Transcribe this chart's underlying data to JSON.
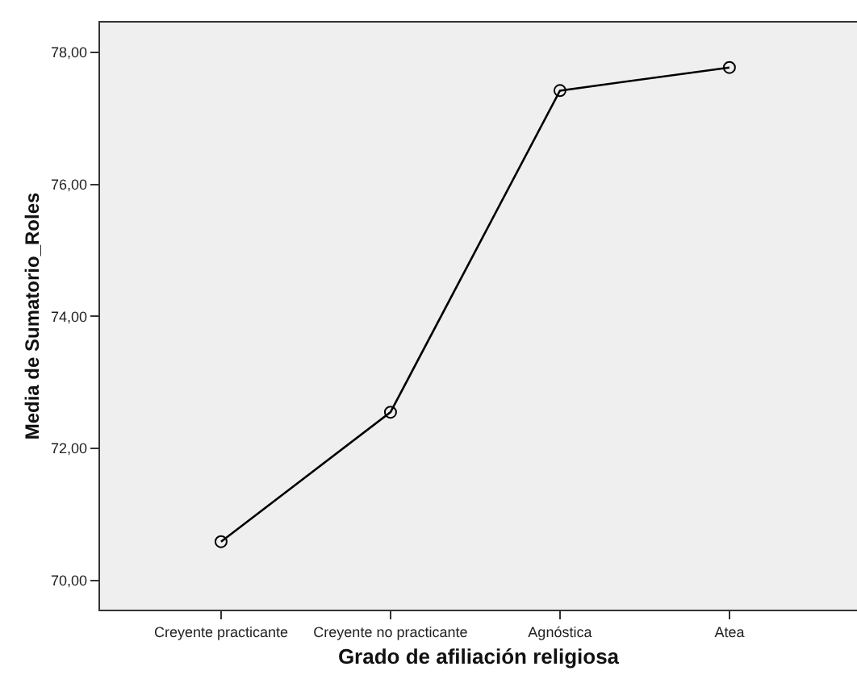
{
  "chart_data": {
    "type": "line",
    "xlabel": "Grado de afiliación religiosa",
    "ylabel": "Media de Sumatorio_Roles",
    "categories": [
      "Creyente practicante",
      "Creyente no practicante",
      "Agnóstica",
      "Atea"
    ],
    "series": [
      {
        "color": "#000000",
        "values": [
          70.59,
          72.55,
          77.42,
          77.77
        ]
      }
    ],
    "ylim": [
      69.56,
      78.45
    ],
    "yticks": [
      {
        "value": 70,
        "label": "70,00"
      },
      {
        "value": 72,
        "label": "72,00"
      },
      {
        "value": 74,
        "label": "74,00"
      },
      {
        "value": 76,
        "label": "76,00"
      },
      {
        "value": 78,
        "label": "78,00"
      }
    ],
    "grid": false,
    "marker": "circle",
    "line_style": "solid"
  }
}
